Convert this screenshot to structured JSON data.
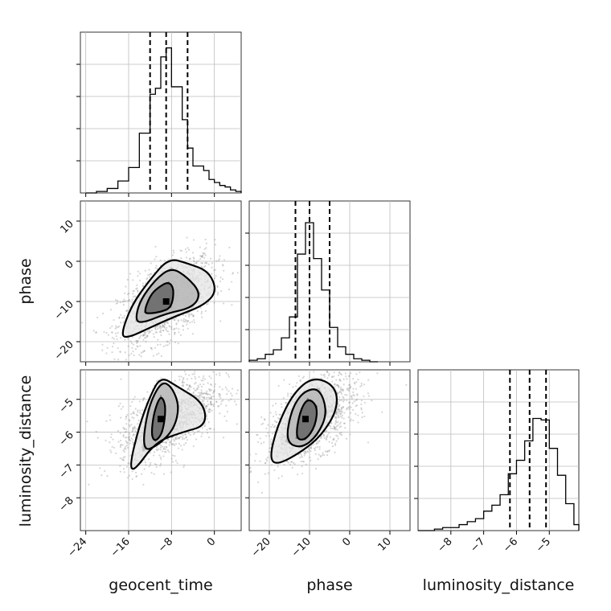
{
  "chart_data": {
    "type": "corner",
    "parameters": [
      "geocent_time",
      "phase",
      "luminosity_distance"
    ],
    "axis_labels": {
      "geocent_time": "geocent_time",
      "phase": "phase",
      "luminosity_distance": "luminosity_distance"
    },
    "ranges": {
      "geocent_time": [
        -25,
        5
      ],
      "phase": [
        -25,
        15
      ],
      "luminosity_distance": [
        -9,
        -4.1
      ]
    },
    "ticks": {
      "geocent_time": [
        -24,
        -16,
        -8,
        0
      ],
      "phase": [
        -20,
        -10,
        0,
        10
      ],
      "luminosity_distance": [
        -8,
        -7,
        -6,
        -5
      ]
    },
    "tick_labels": {
      "geocent_time": [
        "−24",
        "−16",
        "−8",
        "0"
      ],
      "phase": [
        "−20",
        "−10",
        "0",
        "10"
      ],
      "luminosity_distance": [
        "−8",
        "−7",
        "−6",
        "−5"
      ]
    },
    "quantiles": {
      "geocent_time": [
        -12.0,
        -9.0,
        -5.0
      ],
      "phase": [
        -13.5,
        -10.0,
        -5.0
      ],
      "luminosity_distance": [
        -6.2,
        -5.6,
        -5.1
      ]
    },
    "histograms": {
      "geocent_time": {
        "bin_edges": [
          -24,
          -22,
          -20,
          -18,
          -16,
          -14,
          -12,
          -11,
          -10,
          -9,
          -8,
          -7,
          -6,
          -5,
          -4,
          -3,
          -2,
          -1,
          0,
          1,
          2,
          3,
          4,
          5
        ],
        "counts": [
          0.0,
          0.01,
          0.03,
          0.08,
          0.17,
          0.4,
          0.66,
          0.7,
          0.91,
          0.97,
          0.71,
          0.71,
          0.49,
          0.3,
          0.18,
          0.18,
          0.15,
          0.09,
          0.07,
          0.05,
          0.04,
          0.02,
          0.01
        ]
      },
      "phase": {
        "bin_edges": [
          -25,
          -23,
          -21,
          -19,
          -17,
          -15,
          -13,
          -11,
          -9,
          -7,
          -5,
          -3,
          -1,
          1,
          3,
          5,
          7
        ],
        "counts": [
          0.01,
          0.02,
          0.05,
          0.08,
          0.16,
          0.3,
          0.72,
          0.93,
          0.69,
          0.48,
          0.23,
          0.1,
          0.05,
          0.02,
          0.01,
          0.0
        ]
      },
      "luminosity_distance": {
        "bin_edges": [
          -9.0,
          -8.75,
          -8.5,
          -8.25,
          -8.0,
          -7.75,
          -7.5,
          -7.25,
          -7.0,
          -6.75,
          -6.5,
          -6.25,
          -6.0,
          -5.75,
          -5.5,
          -5.25,
          -5.0,
          -4.75,
          -4.5,
          -4.25,
          -4.1
        ],
        "counts": [
          0.0,
          0.0,
          0.01,
          0.02,
          0.02,
          0.04,
          0.06,
          0.08,
          0.13,
          0.17,
          0.24,
          0.38,
          0.47,
          0.6,
          0.75,
          0.74,
          0.55,
          0.37,
          0.18,
          0.04
        ]
      }
    },
    "pairs": [
      {
        "x": "geocent_time",
        "y": "phase",
        "mode": [
          -9,
          -10
        ],
        "contours": [
          [
            [
              -13.2,
              -12.8
            ],
            [
              -12.0,
              -8.5
            ],
            [
              -10.5,
              -6.5
            ],
            [
              -8.5,
              -5.0
            ],
            [
              -7.5,
              -7.0
            ],
            [
              -8.0,
              -11.5
            ],
            [
              -10.0,
              -12.6
            ],
            [
              -12.0,
              -13.0
            ]
          ],
          [
            [
              -14.8,
              -15.0
            ],
            [
              -14.0,
              -10.0
            ],
            [
              -11.0,
              -4.5
            ],
            [
              -8.0,
              -1.5
            ],
            [
              -5.0,
              -4.0
            ],
            [
              -2.5,
              -8.0
            ],
            [
              -4.0,
              -11.5
            ],
            [
              -9.0,
              -13.0
            ],
            [
              -13.0,
              -15.2
            ]
          ],
          [
            [
              -17.5,
              -18.5
            ],
            [
              -15.5,
              -11.0
            ],
            [
              -12.0,
              -4.5
            ],
            [
              -8.5,
              0.8
            ],
            [
              -5.0,
              -0.5
            ],
            [
              -1.0,
              -2.5
            ],
            [
              0.5,
              -7.5
            ],
            [
              -2.0,
              -11.0
            ],
            [
              -7.0,
              -13.5
            ],
            [
              -12.0,
              -16.5
            ],
            [
              -16.0,
              -19.0
            ]
          ]
        ],
        "sample_center": [
          -9,
          -10
        ],
        "sample_spread": [
          4.5,
          5.5
        ]
      },
      {
        "x": "geocent_time",
        "y": "luminosity_distance",
        "mode": [
          -10,
          -5.6
        ],
        "contours": [
          [
            [
              -11.8,
              -6.1
            ],
            [
              -11.3,
              -5.4
            ],
            [
              -10.0,
              -4.85
            ],
            [
              -9.0,
              -5.2
            ],
            [
              -9.6,
              -6.0
            ],
            [
              -11.0,
              -6.3
            ]
          ],
          [
            [
              -13.5,
              -6.6
            ],
            [
              -12.5,
              -5.3
            ],
            [
              -10.0,
              -4.45
            ],
            [
              -8.0,
              -4.6
            ],
            [
              -6.5,
              -5.2
            ],
            [
              -7.5,
              -5.9
            ],
            [
              -10.5,
              -6.4
            ]
          ],
          [
            [
              -15.8,
              -7.0
            ],
            [
              -14.0,
              -5.8
            ],
            [
              -12.0,
              -4.9
            ],
            [
              -10.0,
              -4.3
            ],
            [
              -7.0,
              -4.6
            ],
            [
              -2.0,
              -5.1
            ],
            [
              -1.5,
              -5.8
            ],
            [
              -6.0,
              -6.0
            ],
            [
              -11.0,
              -6.3
            ],
            [
              -15.0,
              -7.2
            ]
          ]
        ],
        "sample_center": [
          -8.5,
          -5.6
        ],
        "sample_spread": [
          4.5,
          0.65
        ]
      },
      {
        "x": "phase",
        "y": "luminosity_distance",
        "mode": [
          -11,
          -5.6
        ],
        "contours": [
          [
            [
              -13.5,
              -6.2
            ],
            [
              -12.5,
              -5.4
            ],
            [
              -10.5,
              -4.95
            ],
            [
              -8.0,
              -5.2
            ],
            [
              -8.5,
              -5.8
            ],
            [
              -11.0,
              -6.25
            ]
          ],
          [
            [
              -16.0,
              -6.3
            ],
            [
              -14.5,
              -5.3
            ],
            [
              -11.5,
              -4.75
            ],
            [
              -7.5,
              -4.65
            ],
            [
              -5.5,
              -5.4
            ],
            [
              -8.0,
              -6.1
            ],
            [
              -12.0,
              -6.5
            ]
          ],
          [
            [
              -20.0,
              -6.8
            ],
            [
              -18.0,
              -5.8
            ],
            [
              -14.0,
              -4.8
            ],
            [
              -9.0,
              -4.3
            ],
            [
              -3.5,
              -4.6
            ],
            [
              -3.0,
              -5.3
            ],
            [
              -7.0,
              -6.1
            ],
            [
              -12.0,
              -6.6
            ],
            [
              -18.0,
              -7.0
            ]
          ]
        ],
        "sample_center": [
          -9.5,
          -5.6
        ],
        "sample_spread": [
          5.5,
          0.65
        ]
      }
    ],
    "grid": true
  }
}
